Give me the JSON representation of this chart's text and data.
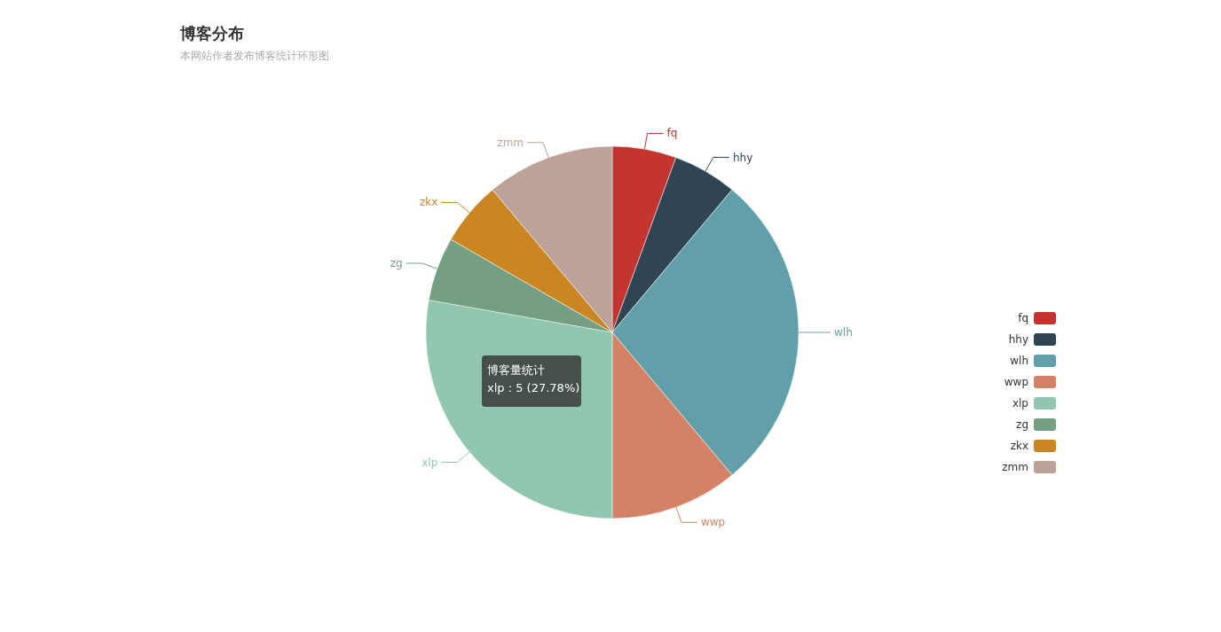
{
  "chart_data": {
    "type": "pie",
    "title": "博客分布",
    "subtitle": "本网站作者发布博客统计环形图",
    "categories": [
      "fq",
      "hhy",
      "wlh",
      "wwp",
      "xlp",
      "zg",
      "zkx",
      "zmm"
    ],
    "values": [
      5.55,
      5.56,
      27.78,
      11.11,
      27.78,
      5.55,
      5.56,
      11.11
    ],
    "colors": [
      "#c23531",
      "#2f4554",
      "#61a0a8",
      "#d48265",
      "#91c7ae",
      "#749f83",
      "#ca8622",
      "#bda29a"
    ],
    "legend": "right",
    "annotations": [
      "博客量统计",
      "xlp : 5 (27.78%)"
    ]
  }
}
